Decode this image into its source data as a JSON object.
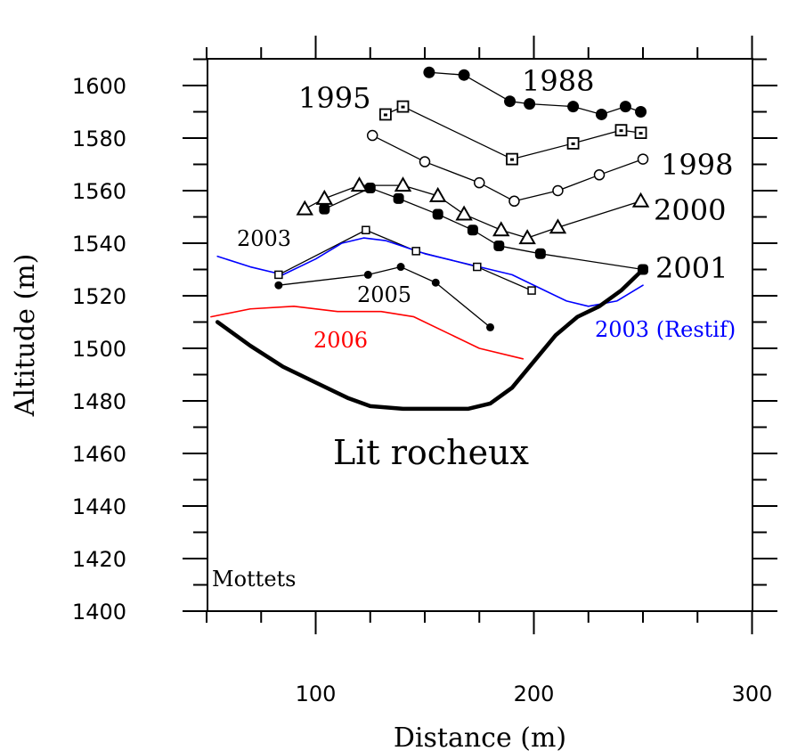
{
  "chart_data": {
    "type": "line",
    "title": "",
    "xlabel": "Distance (m)",
    "ylabel": "Altitude (m)",
    "xlim": [
      50,
      300
    ],
    "ylim": [
      1400,
      1610
    ],
    "x_ticks": [
      100,
      200,
      300
    ],
    "x_tick_labels": [
      "100",
      "200",
      "300"
    ],
    "y_ticks": [
      1400,
      1420,
      1440,
      1460,
      1480,
      1500,
      1520,
      1540,
      1560,
      1580,
      1600
    ],
    "y_tick_labels": [
      "1400",
      "1420",
      "1440",
      "1460",
      "1480",
      "1500",
      "1520",
      "1540",
      "1560",
      "1580",
      "1600"
    ],
    "grid": false,
    "annotations": {
      "site": "Mottets",
      "bed": "Lit rocheux"
    },
    "series": [
      {
        "name": "1988",
        "marker": "filled-circle",
        "color": "#000000",
        "points": [
          [
            152,
            1605
          ],
          [
            168,
            1604
          ],
          [
            189,
            1594
          ],
          [
            198,
            1593
          ],
          [
            218,
            1592
          ],
          [
            231,
            1589
          ],
          [
            242,
            1592
          ],
          [
            249,
            1590
          ]
        ]
      },
      {
        "name": "1995",
        "marker": "square-dot",
        "color": "#000000",
        "points": [
          [
            132,
            1589
          ],
          [
            140,
            1592
          ],
          [
            190,
            1572
          ],
          [
            218,
            1578
          ],
          [
            240,
            1583
          ],
          [
            249,
            1582
          ]
        ]
      },
      {
        "name": "1998",
        "marker": "open-circle",
        "color": "#000000",
        "points": [
          [
            126,
            1581
          ],
          [
            150,
            1571
          ],
          [
            175,
            1563
          ],
          [
            191,
            1556
          ],
          [
            211,
            1560
          ],
          [
            230,
            1566
          ],
          [
            250,
            1572
          ]
        ]
      },
      {
        "name": "2000",
        "marker": "triangle",
        "color": "#000000",
        "points": [
          [
            95,
            1553
          ],
          [
            104,
            1557
          ],
          [
            120,
            1562
          ],
          [
            140,
            1562
          ],
          [
            156,
            1558
          ],
          [
            168,
            1551
          ],
          [
            185,
            1545
          ],
          [
            197,
            1542
          ],
          [
            211,
            1546
          ],
          [
            249,
            1556
          ]
        ]
      },
      {
        "name": "2001",
        "marker": "filled-square-circle",
        "color": "#000000",
        "points": [
          [
            104,
            1553
          ],
          [
            125,
            1561
          ],
          [
            138,
            1557
          ],
          [
            156,
            1551
          ],
          [
            172,
            1545
          ],
          [
            184,
            1539
          ],
          [
            203,
            1536
          ],
          [
            250,
            1530
          ]
        ]
      },
      {
        "name": "2003",
        "marker": "small-square",
        "color": "#000000",
        "points": [
          [
            83,
            1528
          ],
          [
            123,
            1545
          ],
          [
            146,
            1537
          ],
          [
            174,
            1531
          ],
          [
            199,
            1522
          ]
        ]
      },
      {
        "name": "2005",
        "marker": "small-filled-circle",
        "color": "#000000",
        "points": [
          [
            83,
            1524
          ],
          [
            124,
            1528
          ],
          [
            139,
            1531
          ],
          [
            155,
            1525
          ],
          [
            180,
            1508
          ]
        ]
      },
      {
        "name": "2003 (Restif)",
        "marker": "none",
        "color": "#0000ff",
        "points": [
          [
            55,
            1535
          ],
          [
            70,
            1531
          ],
          [
            85,
            1528
          ],
          [
            100,
            1534
          ],
          [
            112,
            1540
          ],
          [
            122,
            1542
          ],
          [
            132,
            1541
          ],
          [
            150,
            1536
          ],
          [
            170,
            1532
          ],
          [
            190,
            1528
          ],
          [
            205,
            1522
          ],
          [
            215,
            1518
          ],
          [
            225,
            1516
          ],
          [
            238,
            1518
          ],
          [
            250,
            1524
          ]
        ]
      },
      {
        "name": "2006",
        "marker": "none",
        "color": "#ff0000",
        "points": [
          [
            52,
            1512
          ],
          [
            70,
            1515
          ],
          [
            90,
            1516
          ],
          [
            110,
            1514
          ],
          [
            130,
            1514
          ],
          [
            145,
            1512
          ],
          [
            160,
            1506
          ],
          [
            175,
            1500
          ],
          [
            195,
            1496
          ]
        ]
      },
      {
        "name": "Lit rocheux",
        "marker": "none",
        "color": "#000000",
        "points": [
          [
            55,
            1510
          ],
          [
            70,
            1501
          ],
          [
            85,
            1493
          ],
          [
            100,
            1487
          ],
          [
            115,
            1481
          ],
          [
            125,
            1478
          ],
          [
            140,
            1477
          ],
          [
            160,
            1477
          ],
          [
            170,
            1477
          ],
          [
            180,
            1479
          ],
          [
            190,
            1485
          ],
          [
            200,
            1495
          ],
          [
            210,
            1505
          ],
          [
            220,
            1512
          ],
          [
            230,
            1516
          ],
          [
            240,
            1522
          ],
          [
            250,
            1530
          ]
        ]
      }
    ]
  }
}
